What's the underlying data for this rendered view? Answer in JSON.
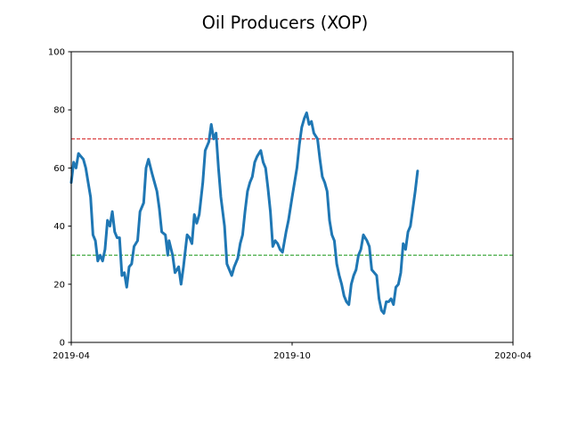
{
  "chart_data": {
    "type": "line",
    "title": "Oil Producers (XOP)",
    "xlabel": "",
    "ylabel": "",
    "x_range": [
      "2019-04-01",
      "2020-04-01"
    ],
    "xticks": [
      {
        "date": "2019-04-01",
        "label": "2019-04"
      },
      {
        "date": "2019-10-01",
        "label": "2019-10"
      },
      {
        "date": "2020-04-01",
        "label": "2020-04"
      }
    ],
    "ylim": [
      0,
      100
    ],
    "yticks": [
      0,
      20,
      40,
      60,
      80,
      100
    ],
    "grid": false,
    "reference_lines": [
      {
        "y": 70,
        "color": "#d62728",
        "style": "dashed"
      },
      {
        "y": 30,
        "color": "#2ca02c",
        "style": "dashed"
      }
    ],
    "series": [
      {
        "color": "#1f77b4",
        "points": [
          [
            "2019-04-01",
            55
          ],
          [
            "2019-04-03",
            62
          ],
          [
            "2019-04-05",
            60
          ],
          [
            "2019-04-07",
            65
          ],
          [
            "2019-04-09",
            64
          ],
          [
            "2019-04-11",
            63
          ],
          [
            "2019-04-13",
            60
          ],
          [
            "2019-04-15",
            55
          ],
          [
            "2019-04-17",
            50
          ],
          [
            "2019-04-19",
            37
          ],
          [
            "2019-04-21",
            35
          ],
          [
            "2019-04-23",
            28
          ],
          [
            "2019-04-25",
            30
          ],
          [
            "2019-04-27",
            28
          ],
          [
            "2019-04-29",
            32
          ],
          [
            "2019-05-01",
            42
          ],
          [
            "2019-05-03",
            40
          ],
          [
            "2019-05-05",
            45
          ],
          [
            "2019-05-07",
            38
          ],
          [
            "2019-05-09",
            36
          ],
          [
            "2019-05-11",
            36
          ],
          [
            "2019-05-13",
            23
          ],
          [
            "2019-05-15",
            24
          ],
          [
            "2019-05-17",
            19
          ],
          [
            "2019-05-19",
            26
          ],
          [
            "2019-05-21",
            27
          ],
          [
            "2019-05-23",
            33
          ],
          [
            "2019-05-26",
            35
          ],
          [
            "2019-05-28",
            45
          ],
          [
            "2019-05-31",
            48
          ],
          [
            "2019-06-02",
            60
          ],
          [
            "2019-06-04",
            63
          ],
          [
            "2019-06-07",
            58
          ],
          [
            "2019-06-09",
            55
          ],
          [
            "2019-06-11",
            52
          ],
          [
            "2019-06-13",
            46
          ],
          [
            "2019-06-15",
            38
          ],
          [
            "2019-06-18",
            37
          ],
          [
            "2019-06-20",
            30
          ],
          [
            "2019-06-21",
            35
          ],
          [
            "2019-06-24",
            30
          ],
          [
            "2019-06-26",
            24
          ],
          [
            "2019-06-29",
            26
          ],
          [
            "2019-07-01",
            20
          ],
          [
            "2019-07-03",
            26
          ],
          [
            "2019-07-06",
            37
          ],
          [
            "2019-07-08",
            36
          ],
          [
            "2019-07-10",
            34
          ],
          [
            "2019-07-12",
            44
          ],
          [
            "2019-07-14",
            41
          ],
          [
            "2019-07-16",
            44
          ],
          [
            "2019-07-19",
            55
          ],
          [
            "2019-07-21",
            66
          ],
          [
            "2019-07-24",
            69
          ],
          [
            "2019-07-26",
            75
          ],
          [
            "2019-07-28",
            70
          ],
          [
            "2019-07-30",
            72
          ],
          [
            "2019-08-01",
            60
          ],
          [
            "2019-08-03",
            50
          ],
          [
            "2019-08-06",
            40
          ],
          [
            "2019-08-08",
            27
          ],
          [
            "2019-08-10",
            25
          ],
          [
            "2019-08-12",
            23
          ],
          [
            "2019-08-14",
            26
          ],
          [
            "2019-08-17",
            29
          ],
          [
            "2019-08-19",
            34
          ],
          [
            "2019-08-21",
            37
          ],
          [
            "2019-08-23",
            45
          ],
          [
            "2019-08-25",
            52
          ],
          [
            "2019-08-27",
            55
          ],
          [
            "2019-08-29",
            57
          ],
          [
            "2019-08-31",
            62
          ],
          [
            "2019-09-02",
            64
          ],
          [
            "2019-09-05",
            66
          ],
          [
            "2019-09-07",
            62
          ],
          [
            "2019-09-09",
            60
          ],
          [
            "2019-09-11",
            53
          ],
          [
            "2019-09-13",
            45
          ],
          [
            "2019-09-15",
            33
          ],
          [
            "2019-09-17",
            35
          ],
          [
            "2019-09-19",
            34
          ],
          [
            "2019-09-21",
            32
          ],
          [
            "2019-09-23",
            31
          ],
          [
            "2019-09-26",
            38
          ],
          [
            "2019-09-28",
            42
          ],
          [
            "2019-10-01",
            50
          ],
          [
            "2019-10-03",
            55
          ],
          [
            "2019-10-05",
            60
          ],
          [
            "2019-10-07",
            68
          ],
          [
            "2019-10-09",
            74
          ],
          [
            "2019-10-11",
            77
          ],
          [
            "2019-10-13",
            79
          ],
          [
            "2019-10-15",
            75
          ],
          [
            "2019-10-17",
            76
          ],
          [
            "2019-10-19",
            72
          ],
          [
            "2019-10-22",
            70
          ],
          [
            "2019-10-24",
            63
          ],
          [
            "2019-10-26",
            57
          ],
          [
            "2019-10-28",
            55
          ],
          [
            "2019-10-30",
            52
          ],
          [
            "2019-11-01",
            42
          ],
          [
            "2019-11-03",
            37
          ],
          [
            "2019-11-05",
            35
          ],
          [
            "2019-11-07",
            27
          ],
          [
            "2019-11-09",
            23
          ],
          [
            "2019-11-11",
            20
          ],
          [
            "2019-11-13",
            16
          ],
          [
            "2019-11-15",
            14
          ],
          [
            "2019-11-17",
            13
          ],
          [
            "2019-11-19",
            20
          ],
          [
            "2019-11-21",
            23
          ],
          [
            "2019-11-23",
            25
          ],
          [
            "2019-11-25",
            30
          ],
          [
            "2019-11-27",
            32
          ],
          [
            "2019-11-29",
            37
          ],
          [
            "2019-12-02",
            35
          ],
          [
            "2019-12-04",
            33
          ],
          [
            "2019-12-06",
            25
          ],
          [
            "2019-12-08",
            24
          ],
          [
            "2019-12-10",
            23
          ],
          [
            "2019-12-12",
            15
          ],
          [
            "2019-12-14",
            11
          ],
          [
            "2019-12-16",
            10
          ],
          [
            "2019-12-18",
            14
          ],
          [
            "2019-12-20",
            14
          ],
          [
            "2019-12-22",
            15
          ],
          [
            "2019-12-24",
            13
          ],
          [
            "2019-12-26",
            19
          ],
          [
            "2019-12-28",
            20
          ],
          [
            "2019-12-30",
            24
          ],
          [
            "2020-01-01",
            34
          ],
          [
            "2020-01-03",
            32
          ],
          [
            "2020-01-05",
            38
          ],
          [
            "2020-01-07",
            40
          ],
          [
            "2020-01-09",
            46
          ],
          [
            "2020-01-11",
            52
          ],
          [
            "2020-01-13",
            59
          ]
        ]
      }
    ]
  }
}
